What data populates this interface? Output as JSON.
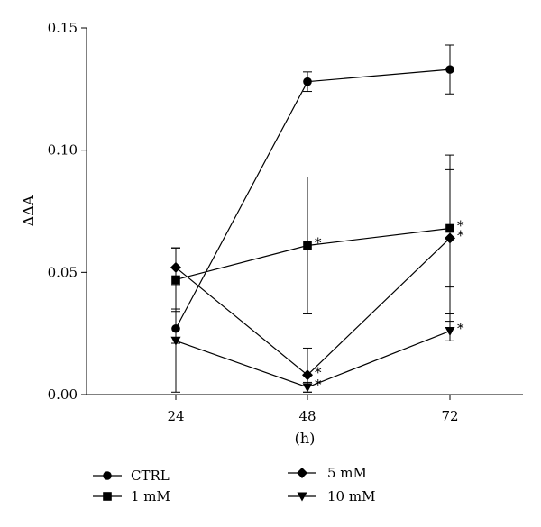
{
  "chart_data": {
    "type": "line",
    "xlabel": "(h)",
    "ylabel": "ΔΔA",
    "categories": [
      "24",
      "48",
      "72"
    ],
    "ylim": [
      0,
      0.15
    ],
    "yticks": [
      "0.00",
      "0.05",
      "0.10",
      "0.15"
    ],
    "grid": false,
    "legend_position": "bottom",
    "series": [
      {
        "name": "CTRL",
        "marker": "circle",
        "values": [
          0.027,
          0.128,
          0.133
        ],
        "err_low": [
          0.001,
          0.124,
          0.123
        ],
        "err_high": [
          0.06,
          0.132,
          0.143
        ],
        "significant": [
          false,
          false,
          false
        ]
      },
      {
        "name": "1 mM",
        "marker": "square",
        "values": [
          0.047,
          0.061,
          0.068
        ],
        "err_low": [
          0.034,
          0.033,
          0.044
        ],
        "err_high": [
          0.06,
          0.089,
          0.092
        ],
        "significant": [
          false,
          true,
          true
        ]
      },
      {
        "name": "5 mM",
        "marker": "diamond",
        "values": [
          0.052,
          0.008,
          0.064
        ],
        "err_low": [
          0.045,
          0.001,
          0.03
        ],
        "err_high": [
          0.06,
          0.019,
          0.098
        ],
        "significant": [
          false,
          true,
          true
        ]
      },
      {
        "name": "10 mM",
        "marker": "triangle-down",
        "values": [
          0.022,
          0.003,
          0.026
        ],
        "err_low": [
          0.021,
          0.001,
          0.022
        ],
        "err_high": [
          0.035,
          0.005,
          0.033
        ],
        "significant": [
          false,
          true,
          true
        ]
      }
    ],
    "significance_marker": "*"
  }
}
